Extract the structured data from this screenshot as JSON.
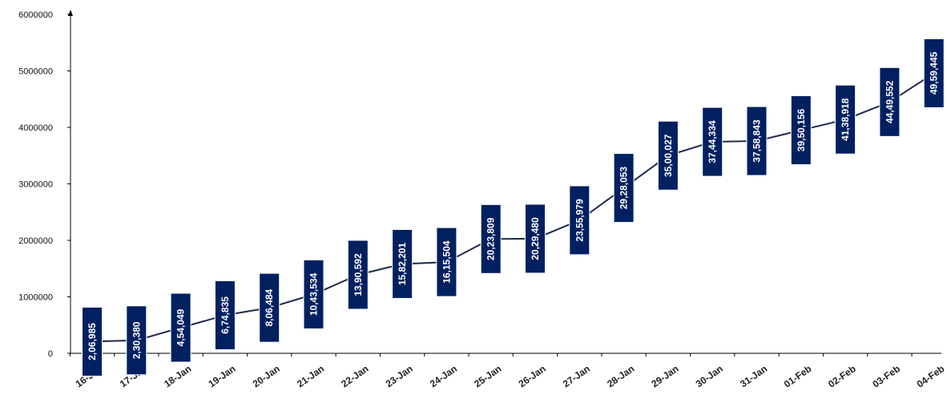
{
  "chart_data": {
    "type": "line",
    "title": "",
    "xlabel": "",
    "ylabel": "",
    "categories": [
      "16-Jan",
      "17-Jan",
      "18-Jan",
      "19-Jan",
      "20-Jan",
      "21-Jan",
      "22-Jan",
      "23-Jan",
      "24-Jan",
      "25-Jan",
      "26-Jan",
      "27-Jan",
      "28-Jan",
      "29-Jan",
      "30-Jan",
      "31-Jan",
      "01-Feb",
      "02-Feb",
      "03-Feb",
      "04-Feb"
    ],
    "values": [
      206985,
      230380,
      454049,
      674835,
      806484,
      1043534,
      1390592,
      1582201,
      1615504,
      2023809,
      2029480,
      2355979,
      2928053,
      3500027,
      3744334,
      3758843,
      3950156,
      4138918,
      4449552,
      4959445
    ],
    "data_labels": [
      "2,06,985",
      "2,30,380",
      "4,54,049",
      "6,74,835",
      "8,06,484",
      "10,43,534",
      "13,90,592",
      "15,82,201",
      "16,15,504",
      "20,23,809",
      "20,29,480",
      "23,55,979",
      "29,28,053",
      "35,00,027",
      "37,44,334",
      "37,58,843",
      "39,50,156",
      "41,38,918",
      "44,49,552",
      "49,59,445"
    ],
    "yticks": [
      "0",
      "1000000",
      "2000000",
      "3000000",
      "4000000",
      "5000000",
      "6000000"
    ],
    "ylim": [
      0,
      6000000
    ],
    "grid": false,
    "legend": "none",
    "colors": {
      "line": "#1e2a4a",
      "label_box": "#002060",
      "label_text": "#ffffff",
      "axis": "#000000"
    }
  }
}
